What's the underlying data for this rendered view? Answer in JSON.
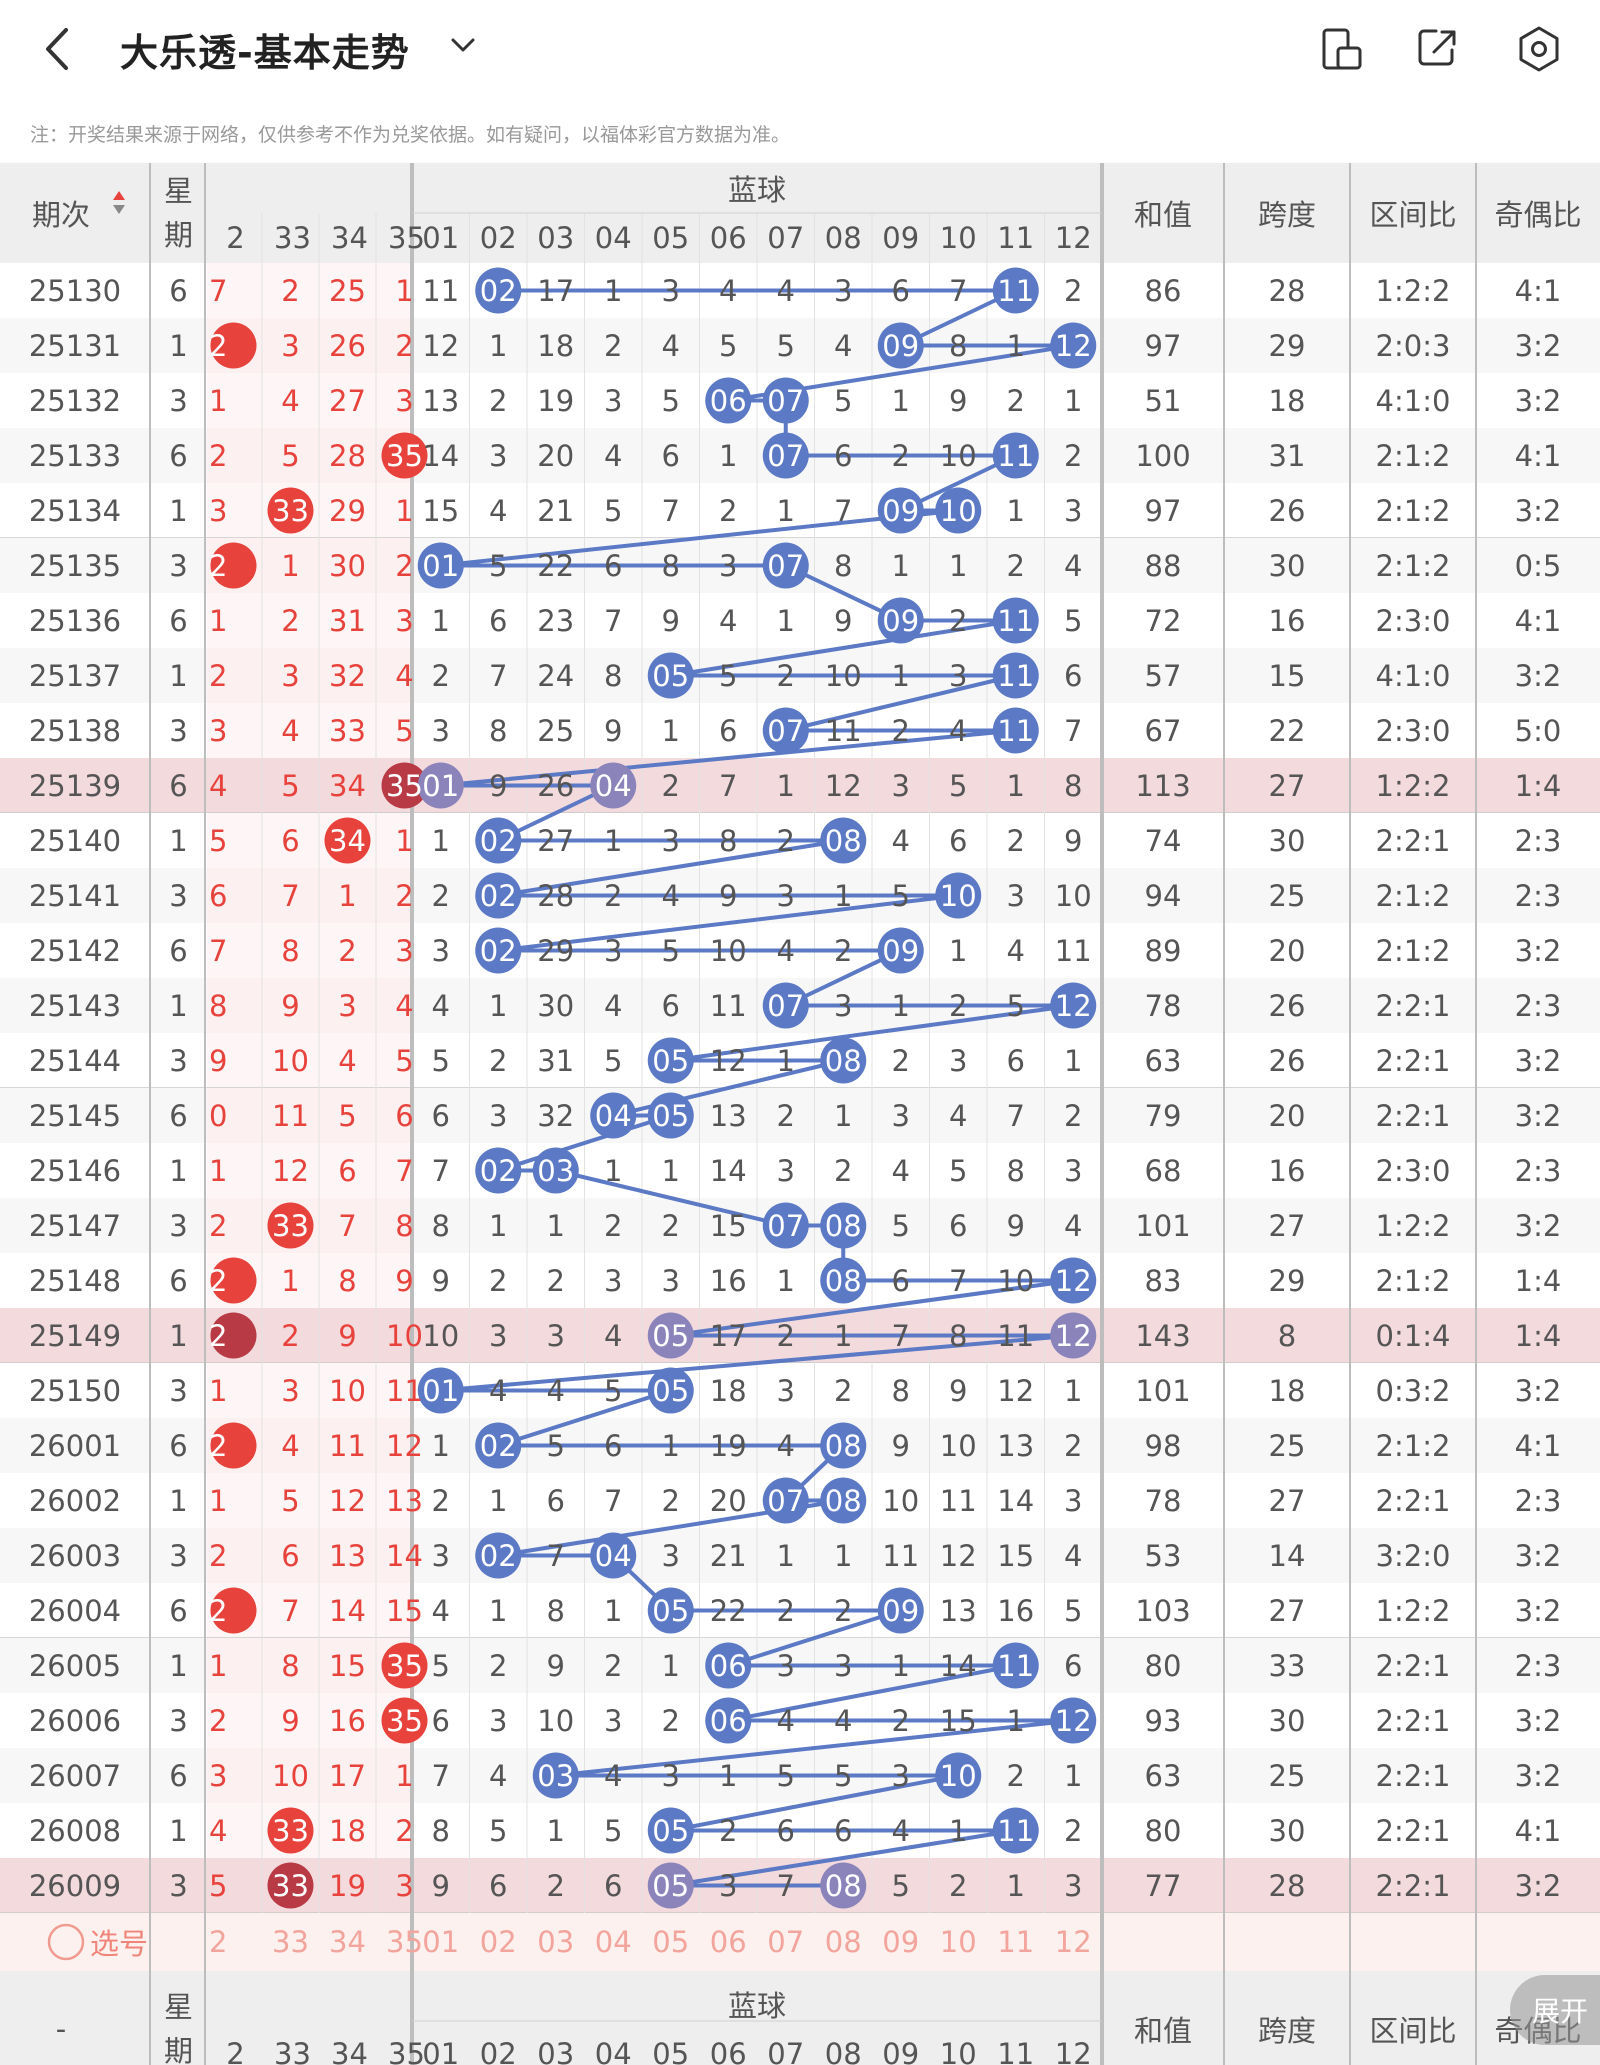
{
  "header": {
    "title": "大乐透-基本走势",
    "back_icon": "chevron-left-icon",
    "dropdown_icon": "chevron-down-icon",
    "actions": [
      "split-screen-icon",
      "share-icon",
      "settings-icon"
    ]
  },
  "note": "注：开奖结果来源于网络，仅供参考不作为兑奖依据。如有疑问，以福体彩官方数据为准。",
  "columns": {
    "period": "期次",
    "weekday": "星期",
    "blue_group": "蓝球",
    "sum": "和值",
    "span": "跨度",
    "zone_ratio": "区间比",
    "odd_even": "奇偶比",
    "front_visible": [
      "2",
      "33",
      "34",
      "35"
    ],
    "blue_nums": [
      "01",
      "02",
      "03",
      "04",
      "05",
      "06",
      "07",
      "08",
      "09",
      "10",
      "11",
      "12"
    ]
  },
  "colors": {
    "red_ball": "#e8423c",
    "blue_ball": "#5b79c4",
    "highlight_row": "#f3dadd",
    "header_bg": "#eeeeee",
    "front_bg": "#fdeeee"
  },
  "rows": [
    {
      "period": "25130",
      "week": "6",
      "front": [
        "7",
        "2",
        "25",
        "1"
      ],
      "fhit": [],
      "blue": [
        "11",
        "02",
        "17",
        "1",
        "3",
        "4",
        "4",
        "3",
        "6",
        "7",
        "11",
        "2"
      ],
      "bhit": [
        1,
        10
      ],
      "sum": "86",
      "span": "28",
      "zone": "1:2:2",
      "oe": "4:1",
      "hl": false
    },
    {
      "period": "25131",
      "week": "1",
      "front": [
        "2",
        "3",
        "26",
        "2"
      ],
      "fhit": [
        0
      ],
      "blue": [
        "12",
        "1",
        "18",
        "2",
        "4",
        "5",
        "5",
        "4",
        "09",
        "8",
        "1",
        "12"
      ],
      "bhit": [
        8,
        11
      ],
      "sum": "97",
      "span": "29",
      "zone": "2:0:3",
      "oe": "3:2",
      "hl": false
    },
    {
      "period": "25132",
      "week": "3",
      "front": [
        "1",
        "4",
        "27",
        "3"
      ],
      "fhit": [],
      "blue": [
        "13",
        "2",
        "19",
        "3",
        "5",
        "06",
        "07",
        "5",
        "1",
        "9",
        "2",
        "1"
      ],
      "bhit": [
        5,
        6
      ],
      "sum": "51",
      "span": "18",
      "zone": "4:1:0",
      "oe": "3:2",
      "hl": false
    },
    {
      "period": "25133",
      "week": "6",
      "front": [
        "2",
        "5",
        "28",
        "35"
      ],
      "fhit": [
        3
      ],
      "blue": [
        "14",
        "3",
        "20",
        "4",
        "6",
        "1",
        "07",
        "6",
        "2",
        "10",
        "11",
        "2"
      ],
      "bhit": [
        6,
        10
      ],
      "sum": "100",
      "span": "31",
      "zone": "2:1:2",
      "oe": "4:1",
      "hl": false
    },
    {
      "period": "25134",
      "week": "1",
      "front": [
        "3",
        "33",
        "29",
        "1"
      ],
      "fhit": [
        1
      ],
      "blue": [
        "15",
        "4",
        "21",
        "5",
        "7",
        "2",
        "1",
        "7",
        "09",
        "10",
        "1",
        "3"
      ],
      "bhit": [
        8,
        9
      ],
      "sum": "97",
      "span": "26",
      "zone": "2:1:2",
      "oe": "3:2",
      "hl": false
    },
    {
      "period": "25135",
      "week": "3",
      "front": [
        "2",
        "1",
        "30",
        "2"
      ],
      "fhit": [
        0
      ],
      "blue": [
        "01",
        "5",
        "22",
        "6",
        "8",
        "3",
        "07",
        "8",
        "1",
        "1",
        "2",
        "4"
      ],
      "bhit": [
        0,
        6
      ],
      "sum": "88",
      "span": "30",
      "zone": "2:1:2",
      "oe": "0:5",
      "hl": false
    },
    {
      "period": "25136",
      "week": "6",
      "front": [
        "1",
        "2",
        "31",
        "3"
      ],
      "fhit": [],
      "blue": [
        "1",
        "6",
        "23",
        "7",
        "9",
        "4",
        "1",
        "9",
        "09",
        "2",
        "11",
        "5"
      ],
      "bhit": [
        8,
        10
      ],
      "sum": "72",
      "span": "16",
      "zone": "2:3:0",
      "oe": "4:1",
      "hl": false
    },
    {
      "period": "25137",
      "week": "1",
      "front": [
        "2",
        "3",
        "32",
        "4"
      ],
      "fhit": [],
      "blue": [
        "2",
        "7",
        "24",
        "8",
        "05",
        "5",
        "2",
        "10",
        "1",
        "3",
        "11",
        "6"
      ],
      "bhit": [
        4,
        10
      ],
      "sum": "57",
      "span": "15",
      "zone": "4:1:0",
      "oe": "3:2",
      "hl": false
    },
    {
      "period": "25138",
      "week": "3",
      "front": [
        "3",
        "4",
        "33",
        "5"
      ],
      "fhit": [],
      "blue": [
        "3",
        "8",
        "25",
        "9",
        "1",
        "6",
        "07",
        "11",
        "2",
        "4",
        "11",
        "7"
      ],
      "bhit": [
        6,
        10
      ],
      "sum": "67",
      "span": "22",
      "zone": "2:3:0",
      "oe": "5:0",
      "hl": false
    },
    {
      "period": "25139",
      "week": "6",
      "front": [
        "4",
        "5",
        "34",
        "35"
      ],
      "fhit": [
        3
      ],
      "blue": [
        "01",
        "9",
        "26",
        "04",
        "2",
        "7",
        "1",
        "12",
        "3",
        "5",
        "1",
        "8"
      ],
      "bhit": [
        0,
        3
      ],
      "sum": "113",
      "span": "27",
      "zone": "1:2:2",
      "oe": "1:4",
      "hl": true
    },
    {
      "period": "25140",
      "week": "1",
      "front": [
        "5",
        "6",
        "34",
        "1"
      ],
      "fhit": [
        2
      ],
      "blue": [
        "1",
        "02",
        "27",
        "1",
        "3",
        "8",
        "2",
        "08",
        "4",
        "6",
        "2",
        "9"
      ],
      "bhit": [
        1,
        7
      ],
      "sum": "74",
      "span": "30",
      "zone": "2:2:1",
      "oe": "2:3",
      "hl": false
    },
    {
      "period": "25141",
      "week": "3",
      "front": [
        "6",
        "7",
        "1",
        "2"
      ],
      "fhit": [],
      "blue": [
        "2",
        "02",
        "28",
        "2",
        "4",
        "9",
        "3",
        "1",
        "5",
        "10",
        "3",
        "10"
      ],
      "bhit": [
        1,
        9
      ],
      "sum": "94",
      "span": "25",
      "zone": "2:1:2",
      "oe": "2:3",
      "hl": false
    },
    {
      "period": "25142",
      "week": "6",
      "front": [
        "7",
        "8",
        "2",
        "3"
      ],
      "fhit": [],
      "blue": [
        "3",
        "02",
        "29",
        "3",
        "5",
        "10",
        "4",
        "2",
        "09",
        "1",
        "4",
        "11"
      ],
      "bhit": [
        1,
        8
      ],
      "sum": "89",
      "span": "20",
      "zone": "2:1:2",
      "oe": "3:2",
      "hl": false
    },
    {
      "period": "25143",
      "week": "1",
      "front": [
        "8",
        "9",
        "3",
        "4"
      ],
      "fhit": [],
      "blue": [
        "4",
        "1",
        "30",
        "4",
        "6",
        "11",
        "07",
        "3",
        "1",
        "2",
        "5",
        "12"
      ],
      "bhit": [
        6,
        11
      ],
      "sum": "78",
      "span": "26",
      "zone": "2:2:1",
      "oe": "2:3",
      "hl": false
    },
    {
      "period": "25144",
      "week": "3",
      "front": [
        "9",
        "10",
        "4",
        "5"
      ],
      "fhit": [],
      "blue": [
        "5",
        "2",
        "31",
        "5",
        "05",
        "12",
        "1",
        "08",
        "2",
        "3",
        "6",
        "1"
      ],
      "bhit": [
        4,
        7
      ],
      "sum": "63",
      "span": "26",
      "zone": "2:2:1",
      "oe": "3:2",
      "hl": false
    },
    {
      "period": "25145",
      "week": "6",
      "front": [
        "0",
        "11",
        "5",
        "6"
      ],
      "fhit": [],
      "blue": [
        "6",
        "3",
        "32",
        "04",
        "05",
        "13",
        "2",
        "1",
        "3",
        "4",
        "7",
        "2"
      ],
      "bhit": [
        3,
        4
      ],
      "sum": "79",
      "span": "20",
      "zone": "2:2:1",
      "oe": "3:2",
      "hl": false
    },
    {
      "period": "25146",
      "week": "1",
      "front": [
        "1",
        "12",
        "6",
        "7"
      ],
      "fhit": [],
      "blue": [
        "7",
        "02",
        "03",
        "1",
        "1",
        "14",
        "3",
        "2",
        "4",
        "5",
        "8",
        "3"
      ],
      "bhit": [
        1,
        2
      ],
      "sum": "68",
      "span": "16",
      "zone": "2:3:0",
      "oe": "2:3",
      "hl": false
    },
    {
      "period": "25147",
      "week": "3",
      "front": [
        "2",
        "33",
        "7",
        "8"
      ],
      "fhit": [
        1
      ],
      "blue": [
        "8",
        "1",
        "1",
        "2",
        "2",
        "15",
        "07",
        "08",
        "5",
        "6",
        "9",
        "4"
      ],
      "bhit": [
        6,
        7
      ],
      "sum": "101",
      "span": "27",
      "zone": "1:2:2",
      "oe": "3:2",
      "hl": false
    },
    {
      "period": "25148",
      "week": "6",
      "front": [
        "2",
        "1",
        "8",
        "9"
      ],
      "fhit": [
        0
      ],
      "blue": [
        "9",
        "2",
        "2",
        "3",
        "3",
        "16",
        "1",
        "08",
        "6",
        "7",
        "10",
        "12"
      ],
      "bhit": [
        7,
        11
      ],
      "sum": "83",
      "span": "29",
      "zone": "2:1:2",
      "oe": "1:4",
      "hl": false
    },
    {
      "period": "25149",
      "week": "1",
      "front": [
        "2",
        "2",
        "9",
        "10"
      ],
      "fhit": [
        0
      ],
      "blue": [
        "10",
        "3",
        "3",
        "4",
        "05",
        "17",
        "2",
        "1",
        "7",
        "8",
        "11",
        "12"
      ],
      "bhit": [
        4,
        11
      ],
      "sum": "143",
      "span": "8",
      "zone": "0:1:4",
      "oe": "1:4",
      "hl": true
    },
    {
      "period": "25150",
      "week": "3",
      "front": [
        "1",
        "3",
        "10",
        "11"
      ],
      "fhit": [],
      "blue": [
        "01",
        "4",
        "4",
        "5",
        "05",
        "18",
        "3",
        "2",
        "8",
        "9",
        "12",
        "1"
      ],
      "bhit": [
        0,
        4
      ],
      "sum": "101",
      "span": "18",
      "zone": "0:3:2",
      "oe": "3:2",
      "hl": false
    },
    {
      "period": "26001",
      "week": "6",
      "front": [
        "2",
        "4",
        "11",
        "12"
      ],
      "fhit": [
        0
      ],
      "blue": [
        "1",
        "02",
        "5",
        "6",
        "1",
        "19",
        "4",
        "08",
        "9",
        "10",
        "13",
        "2"
      ],
      "bhit": [
        1,
        7
      ],
      "sum": "98",
      "span": "25",
      "zone": "2:1:2",
      "oe": "4:1",
      "hl": false
    },
    {
      "period": "26002",
      "week": "1",
      "front": [
        "1",
        "5",
        "12",
        "13"
      ],
      "fhit": [],
      "blue": [
        "2",
        "1",
        "6",
        "7",
        "2",
        "20",
        "07",
        "08",
        "10",
        "11",
        "14",
        "3"
      ],
      "bhit": [
        6,
        7
      ],
      "sum": "78",
      "span": "27",
      "zone": "2:2:1",
      "oe": "2:3",
      "hl": false
    },
    {
      "period": "26003",
      "week": "3",
      "front": [
        "2",
        "6",
        "13",
        "14"
      ],
      "fhit": [],
      "blue": [
        "3",
        "02",
        "7",
        "04",
        "3",
        "21",
        "1",
        "1",
        "11",
        "12",
        "15",
        "4"
      ],
      "bhit": [
        1,
        3
      ],
      "sum": "53",
      "span": "14",
      "zone": "3:2:0",
      "oe": "3:2",
      "hl": false
    },
    {
      "period": "26004",
      "week": "6",
      "front": [
        "2",
        "7",
        "14",
        "15"
      ],
      "fhit": [
        0
      ],
      "blue": [
        "4",
        "1",
        "8",
        "1",
        "05",
        "22",
        "2",
        "2",
        "09",
        "13",
        "16",
        "5"
      ],
      "bhit": [
        4,
        8
      ],
      "sum": "103",
      "span": "27",
      "zone": "1:2:2",
      "oe": "3:2",
      "hl": false
    },
    {
      "period": "26005",
      "week": "1",
      "front": [
        "1",
        "8",
        "15",
        "35"
      ],
      "fhit": [
        3
      ],
      "blue": [
        "5",
        "2",
        "9",
        "2",
        "1",
        "06",
        "3",
        "3",
        "1",
        "14",
        "11",
        "6"
      ],
      "bhit": [
        5,
        10
      ],
      "sum": "80",
      "span": "33",
      "zone": "2:2:1",
      "oe": "2:3",
      "hl": false
    },
    {
      "period": "26006",
      "week": "3",
      "front": [
        "2",
        "9",
        "16",
        "35"
      ],
      "fhit": [
        3
      ],
      "blue": [
        "6",
        "3",
        "10",
        "3",
        "2",
        "06",
        "4",
        "4",
        "2",
        "15",
        "1",
        "12"
      ],
      "bhit": [
        5,
        11
      ],
      "sum": "93",
      "span": "30",
      "zone": "2:2:1",
      "oe": "3:2",
      "hl": false
    },
    {
      "period": "26007",
      "week": "6",
      "front": [
        "3",
        "10",
        "17",
        "1"
      ],
      "fhit": [],
      "blue": [
        "7",
        "4",
        "03",
        "4",
        "3",
        "1",
        "5",
        "5",
        "3",
        "10",
        "2",
        "1"
      ],
      "bhit": [
        2,
        9
      ],
      "sum": "63",
      "span": "25",
      "zone": "2:2:1",
      "oe": "3:2",
      "hl": false
    },
    {
      "period": "26008",
      "week": "1",
      "front": [
        "4",
        "33",
        "18",
        "2"
      ],
      "fhit": [
        1
      ],
      "blue": [
        "8",
        "5",
        "1",
        "5",
        "05",
        "2",
        "6",
        "6",
        "4",
        "1",
        "11",
        "2"
      ],
      "bhit": [
        4,
        10
      ],
      "sum": "80",
      "span": "30",
      "zone": "2:2:1",
      "oe": "4:1",
      "hl": false
    },
    {
      "period": "26009",
      "week": "3",
      "front": [
        "5",
        "33",
        "19",
        "3"
      ],
      "fhit": [
        1
      ],
      "blue": [
        "9",
        "6",
        "2",
        "6",
        "05",
        "3",
        "7",
        "08",
        "5",
        "2",
        "1",
        "3"
      ],
      "bhit": [
        4,
        7
      ],
      "sum": "77",
      "span": "28",
      "zone": "2:2:1",
      "oe": "3:2",
      "hl": true
    }
  ],
  "select_row": {
    "label": "选号",
    "front": [
      "2",
      "33",
      "34",
      "35"
    ],
    "blue": [
      "01",
      "02",
      "03",
      "04",
      "05",
      "06",
      "07",
      "08",
      "09",
      "10",
      "11",
      "12"
    ]
  },
  "footer": {
    "period": "-",
    "expand_label": "展开"
  }
}
